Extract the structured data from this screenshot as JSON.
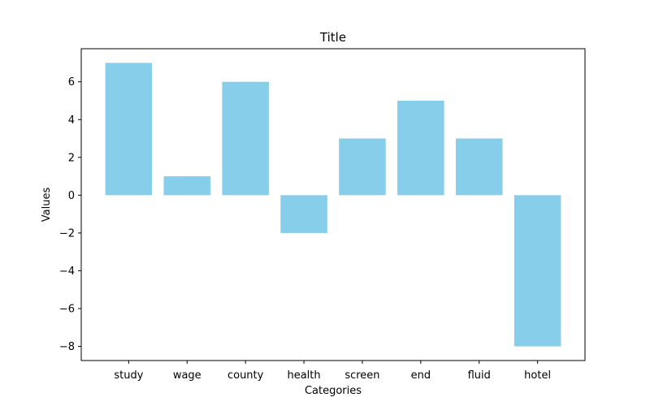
{
  "chart_data": {
    "type": "bar",
    "title": "Title",
    "xlabel": "Categories",
    "ylabel": "Values",
    "categories": [
      "study",
      "wage",
      "county",
      "health",
      "screen",
      "end",
      "fluid",
      "hotel"
    ],
    "values": [
      7,
      1,
      6,
      -2,
      3,
      5,
      3,
      -8
    ],
    "ylim": [
      -8.75,
      7.75
    ],
    "yticks": [
      -8,
      -6,
      -4,
      -2,
      0,
      2,
      4,
      6
    ],
    "ytick_labels": [
      "−8",
      "−6",
      "−4",
      "−2",
      "0",
      "2",
      "4",
      "6"
    ],
    "bar_color": "#87CEEB",
    "grid": false,
    "legend": "none"
  }
}
